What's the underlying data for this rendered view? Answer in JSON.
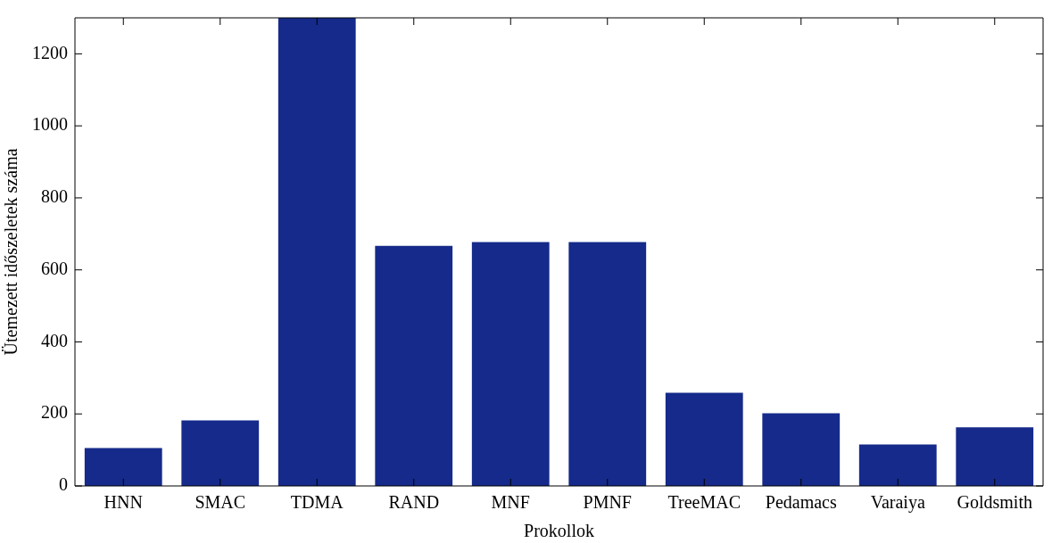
{
  "chart_data": {
    "type": "bar",
    "xlabel": "Prokollok",
    "ylabel": "Ütemezett időszeletek száma",
    "categories": [
      "HNN",
      "SMAC",
      "TDMA",
      "RAND",
      "MNF",
      "PMNF",
      "TreeMAC",
      "Pedamacs",
      "Varaiya",
      "Goldsmith"
    ],
    "values": [
      105,
      182,
      1300,
      667,
      677,
      677,
      259,
      202,
      115,
      163
    ],
    "color": "#152a8a",
    "ylim": [
      0,
      1300
    ],
    "yticks": [
      0,
      200,
      400,
      600,
      800,
      1000,
      1200
    ],
    "grid": false,
    "legend": false
  }
}
